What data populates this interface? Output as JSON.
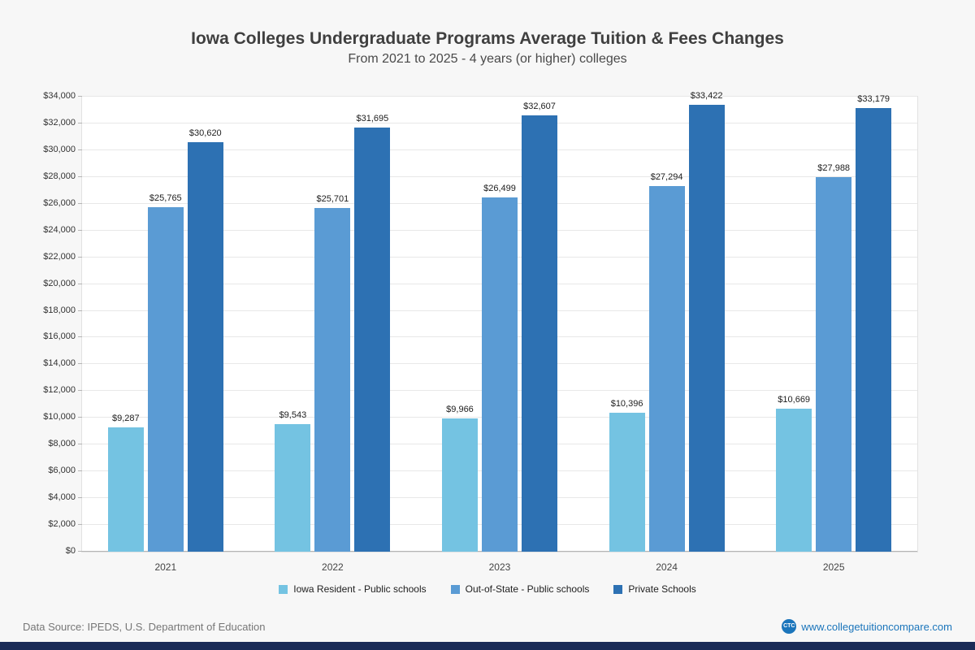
{
  "page": {
    "footer": {
      "source": "Data Source: IPEDS, U.S. Department of Education",
      "website": "www.collegetuitioncompare.com",
      "logo_text": "CTC"
    }
  },
  "chart_data": {
    "type": "bar",
    "title": "Iowa Colleges Undergraduate Programs Average Tuition & Fees Changes",
    "subtitle": "From 2021 to 2025 - 4 years (or higher) colleges",
    "categories": [
      "2021",
      "2022",
      "2023",
      "2024",
      "2025"
    ],
    "series": [
      {
        "name": "Iowa Resident - Public schools",
        "color": "#74c3e2",
        "values": [
          9287,
          9543,
          9966,
          10396,
          10669
        ]
      },
      {
        "name": "Out-of-State - Public schools",
        "color": "#5a9bd4",
        "values": [
          25765,
          25701,
          26499,
          27294,
          27988
        ]
      },
      {
        "name": "Private Schools",
        "color": "#2d71b3",
        "values": [
          30620,
          31695,
          32607,
          33422,
          33179
        ]
      }
    ],
    "ylim": [
      0,
      34000
    ],
    "yticks": [
      0,
      2000,
      4000,
      6000,
      8000,
      10000,
      12000,
      14000,
      16000,
      18000,
      20000,
      22000,
      24000,
      26000,
      28000,
      30000,
      32000,
      34000
    ],
    "ytick_labels": [
      "$0",
      "$2,000",
      "$4,000",
      "$6,000",
      "$8,000",
      "$10,000",
      "$12,000",
      "$14,000",
      "$16,000",
      "$18,000",
      "$20,000",
      "$22,000",
      "$24,000",
      "$26,000",
      "$28,000",
      "$30,000",
      "$32,000",
      "$34,000"
    ],
    "grid": true,
    "legend_position": "bottom",
    "xlabel": "",
    "ylabel": ""
  }
}
